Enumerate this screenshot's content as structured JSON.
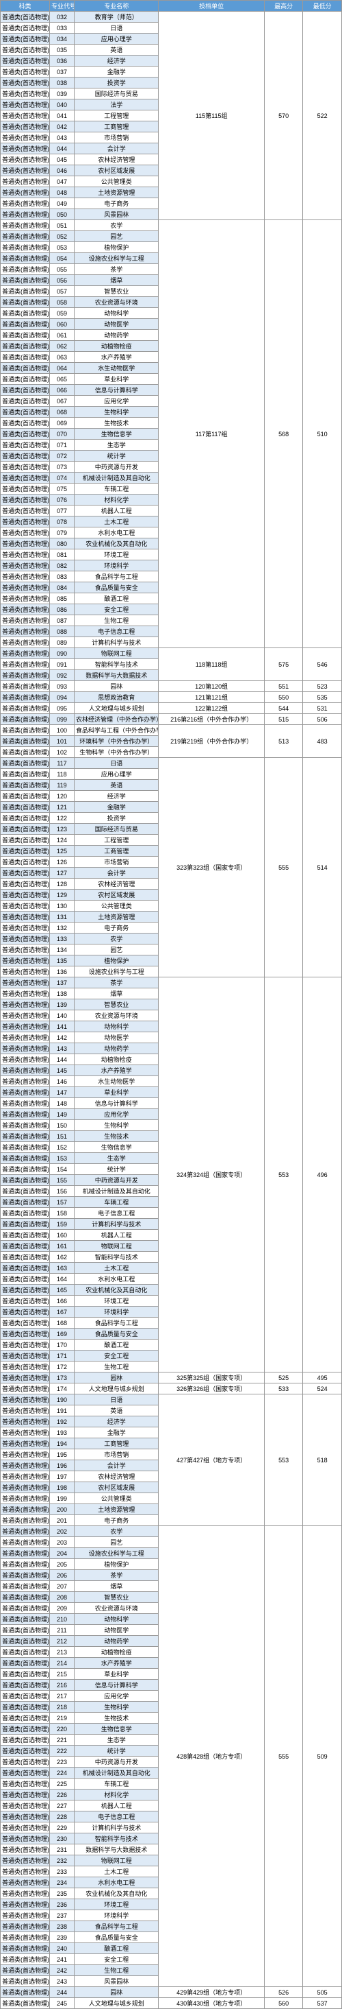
{
  "headers": [
    "科类",
    "专业代号",
    "专业名称",
    "投档单位",
    "最高分",
    "最低分"
  ],
  "category": "普通类(首选物理)",
  "groups": [
    {
      "unit": "115第115组",
      "max": "570",
      "min": "522",
      "rows": [
        [
          "032",
          "教育学（师范）"
        ],
        [
          "033",
          "日语"
        ],
        [
          "034",
          "应用心理学"
        ],
        [
          "035",
          "英语"
        ],
        [
          "036",
          "经济学"
        ],
        [
          "037",
          "金融学"
        ],
        [
          "038",
          "投资学"
        ],
        [
          "039",
          "国际经济与贸易"
        ],
        [
          "040",
          "法学"
        ],
        [
          "041",
          "工程管理"
        ],
        [
          "042",
          "工商管理"
        ],
        [
          "043",
          "市场营销"
        ],
        [
          "044",
          "会计学"
        ],
        [
          "045",
          "农林经济管理"
        ],
        [
          "046",
          "农村区域发展"
        ],
        [
          "047",
          "公共管理类"
        ],
        [
          "048",
          "土地资源管理"
        ],
        [
          "049",
          "电子商务"
        ],
        [
          "050",
          "风景园林"
        ]
      ]
    },
    {
      "unit": "117第117组",
      "max": "568",
      "min": "510",
      "rows": [
        [
          "051",
          "农学"
        ],
        [
          "052",
          "园艺"
        ],
        [
          "053",
          "植物保护"
        ],
        [
          "054",
          "设施农业科学与工程"
        ],
        [
          "055",
          "茶学"
        ],
        [
          "056",
          "烟草"
        ],
        [
          "057",
          "智慧农业"
        ],
        [
          "058",
          "农业资源与环境"
        ],
        [
          "059",
          "动物科学"
        ],
        [
          "060",
          "动物医学"
        ],
        [
          "061",
          "动物药学"
        ],
        [
          "062",
          "动植物检疫"
        ],
        [
          "063",
          "水产养殖学"
        ],
        [
          "064",
          "水生动物医学"
        ],
        [
          "065",
          "草业科学"
        ],
        [
          "066",
          "信息与计算科学"
        ],
        [
          "067",
          "应用化学"
        ],
        [
          "068",
          "生物科学"
        ],
        [
          "069",
          "生物技术"
        ],
        [
          "070",
          "生物信息学"
        ],
        [
          "071",
          "生态学"
        ],
        [
          "072",
          "统计学"
        ],
        [
          "073",
          "中药资源与开发"
        ],
        [
          "074",
          "机械设计制造及其自动化"
        ],
        [
          "075",
          "车辆工程"
        ],
        [
          "076",
          "材料化学"
        ],
        [
          "077",
          "机器人工程"
        ],
        [
          "078",
          "土木工程"
        ],
        [
          "079",
          "水利水电工程"
        ],
        [
          "080",
          "农业机械化及其自动化"
        ],
        [
          "081",
          "环境工程"
        ],
        [
          "082",
          "环境科学"
        ],
        [
          "083",
          "食品科学与工程"
        ],
        [
          "084",
          "食品质量与安全"
        ],
        [
          "085",
          "酿酒工程"
        ],
        [
          "086",
          "安全工程"
        ],
        [
          "087",
          "生物工程"
        ],
        [
          "088",
          "电子信息工程"
        ],
        [
          "089",
          "计算机科学与技术"
        ]
      ]
    },
    {
      "unit": "118第118组",
      "max": "575",
      "min": "546",
      "rows": [
        [
          "090",
          "物联网工程"
        ],
        [
          "091",
          "智能科学与技术"
        ],
        [
          "092",
          "数据科学与大数据技术"
        ]
      ]
    },
    {
      "unit": "120第120组",
      "max": "551",
      "min": "523",
      "rows": [
        [
          "093",
          "园林"
        ]
      ]
    },
    {
      "unit": "121第121组",
      "max": "550",
      "min": "535",
      "rows": [
        [
          "094",
          "思想政治教育"
        ]
      ]
    },
    {
      "unit": "122第122组",
      "max": "544",
      "min": "531",
      "rows": [
        [
          "095",
          "人文地理与城乡规划"
        ]
      ]
    },
    {
      "unit": "216第216组（中外合作办学）",
      "max": "515",
      "min": "506",
      "rows": [
        [
          "099",
          "农林经济管理（中外合作办学）"
        ]
      ]
    },
    {
      "unit": "219第219组（中外合作办学）",
      "max": "513",
      "min": "483",
      "rows": [
        [
          "100",
          "食品科学与工程（中外合作办学）"
        ],
        [
          "101",
          "环境科学（中外合作办学）"
        ],
        [
          "102",
          "生物科学（中外合作办学）"
        ]
      ]
    },
    {
      "unit": "323第323组（国家专项）",
      "max": "555",
      "min": "514",
      "rows": [
        [
          "117",
          "日语"
        ],
        [
          "118",
          "应用心理学"
        ],
        [
          "119",
          "英语"
        ],
        [
          "120",
          "经济学"
        ],
        [
          "121",
          "金融学"
        ],
        [
          "122",
          "投资学"
        ],
        [
          "123",
          "国际经济与贸易"
        ],
        [
          "124",
          "工程管理"
        ],
        [
          "125",
          "工商管理"
        ],
        [
          "126",
          "市场营销"
        ],
        [
          "127",
          "会计学"
        ],
        [
          "128",
          "农林经济管理"
        ],
        [
          "129",
          "农村区域发展"
        ],
        [
          "130",
          "公共管理类"
        ],
        [
          "131",
          "土地资源管理"
        ],
        [
          "132",
          "电子商务"
        ],
        [
          "133",
          "农学"
        ],
        [
          "134",
          "园艺"
        ],
        [
          "135",
          "植物保护"
        ],
        [
          "136",
          "设施农业科学与工程"
        ]
      ]
    },
    {
      "unit": "324第324组（国家专项）",
      "max": "553",
      "min": "496",
      "rows": [
        [
          "137",
          "茶学"
        ],
        [
          "138",
          "烟草"
        ],
        [
          "139",
          "智慧农业"
        ],
        [
          "140",
          "农业资源与环境"
        ],
        [
          "141",
          "动物科学"
        ],
        [
          "142",
          "动物医学"
        ],
        [
          "143",
          "动物药学"
        ],
        [
          "144",
          "动植物检疫"
        ],
        [
          "145",
          "水产养殖学"
        ],
        [
          "146",
          "水生动物医学"
        ],
        [
          "147",
          "草业科学"
        ],
        [
          "148",
          "信息与计算科学"
        ],
        [
          "149",
          "应用化学"
        ],
        [
          "150",
          "生物科学"
        ],
        [
          "151",
          "生物技术"
        ],
        [
          "152",
          "生物信息学"
        ],
        [
          "153",
          "生态学"
        ],
        [
          "154",
          "统计学"
        ],
        [
          "155",
          "中药资源与开发"
        ],
        [
          "156",
          "机械设计制造及其自动化"
        ],
        [
          "157",
          "车辆工程"
        ],
        [
          "158",
          "电子信息工程"
        ],
        [
          "159",
          "计算机科学与技术"
        ],
        [
          "160",
          "机器人工程"
        ],
        [
          "161",
          "物联网工程"
        ],
        [
          "162",
          "智能科学与技术"
        ],
        [
          "163",
          "土木工程"
        ],
        [
          "164",
          "水利水电工程"
        ],
        [
          "165",
          "农业机械化及其自动化"
        ],
        [
          "166",
          "环境工程"
        ],
        [
          "167",
          "环境科学"
        ],
        [
          "168",
          "食品科学与工程"
        ],
        [
          "169",
          "食品质量与安全"
        ],
        [
          "170",
          "酿酒工程"
        ],
        [
          "171",
          "安全工程"
        ],
        [
          "172",
          "生物工程"
        ]
      ]
    },
    {
      "unit": "325第325组（国家专项）",
      "max": "525",
      "min": "495",
      "rows": [
        [
          "173",
          "园林"
        ]
      ]
    },
    {
      "unit": "326第326组（国家专项）",
      "max": "533",
      "min": "524",
      "rows": [
        [
          "174",
          "人文地理与城乡规划"
        ]
      ]
    },
    {
      "unit": "427第427组（地方专项）",
      "max": "553",
      "min": "518",
      "rows": [
        [
          "190",
          "日语"
        ],
        [
          "191",
          "英语"
        ],
        [
          "192",
          "经济学"
        ],
        [
          "193",
          "金融学"
        ],
        [
          "194",
          "工商管理"
        ],
        [
          "195",
          "市场营销"
        ],
        [
          "196",
          "会计学"
        ],
        [
          "197",
          "农林经济管理"
        ],
        [
          "198",
          "农村区域发展"
        ],
        [
          "199",
          "公共管理类"
        ],
        [
          "200",
          "土地资源管理"
        ],
        [
          "201",
          "电子商务"
        ]
      ]
    },
    {
      "unit": "428第428组（地方专项）",
      "max": "555",
      "min": "509",
      "rows": [
        [
          "202",
          "农学"
        ],
        [
          "203",
          "园艺"
        ],
        [
          "204",
          "设施农业科学与工程"
        ],
        [
          "205",
          "植物保护"
        ],
        [
          "206",
          "茶学"
        ],
        [
          "207",
          "烟草"
        ],
        [
          "208",
          "智慧农业"
        ],
        [
          "209",
          "农业资源与环境"
        ],
        [
          "210",
          "动物科学"
        ],
        [
          "211",
          "动物医学"
        ],
        [
          "212",
          "动物药学"
        ],
        [
          "213",
          "动植物检疫"
        ],
        [
          "214",
          "水产养殖学"
        ],
        [
          "215",
          "草业科学"
        ],
        [
          "216",
          "信息与计算科学"
        ],
        [
          "217",
          "应用化学"
        ],
        [
          "218",
          "生物科学"
        ],
        [
          "219",
          "生物技术"
        ],
        [
          "220",
          "生物信息学"
        ],
        [
          "221",
          "生态学"
        ],
        [
          "222",
          "统计学"
        ],
        [
          "223",
          "中药资源与开发"
        ],
        [
          "224",
          "机械设计制造及其自动化"
        ],
        [
          "225",
          "车辆工程"
        ],
        [
          "226",
          "材料化学"
        ],
        [
          "227",
          "机器人工程"
        ],
        [
          "228",
          "电子信息工程"
        ],
        [
          "229",
          "计算机科学与技术"
        ],
        [
          "230",
          "智能科学与技术"
        ],
        [
          "231",
          "数据科学与大数据技术"
        ],
        [
          "232",
          "物联网工程"
        ],
        [
          "233",
          "土木工程"
        ],
        [
          "234",
          "水利水电工程"
        ],
        [
          "235",
          "农业机械化及其自动化"
        ],
        [
          "236",
          "环境工程"
        ],
        [
          "237",
          "环境科学"
        ],
        [
          "238",
          "食品科学与工程"
        ],
        [
          "239",
          "食品质量与安全"
        ],
        [
          "240",
          "酿酒工程"
        ],
        [
          "241",
          "安全工程"
        ],
        [
          "242",
          "生物工程"
        ],
        [
          "243",
          "风景园林"
        ]
      ]
    },
    {
      "unit": "429第429组（地方专项）",
      "max": "526",
      "min": "505",
      "rows": [
        [
          "244",
          "园林"
        ]
      ]
    },
    {
      "unit": "430第430组（地方专项）",
      "max": "560",
      "min": "537",
      "rows": [
        [
          "245",
          "人文地理与城乡规划"
        ]
      ]
    }
  ]
}
